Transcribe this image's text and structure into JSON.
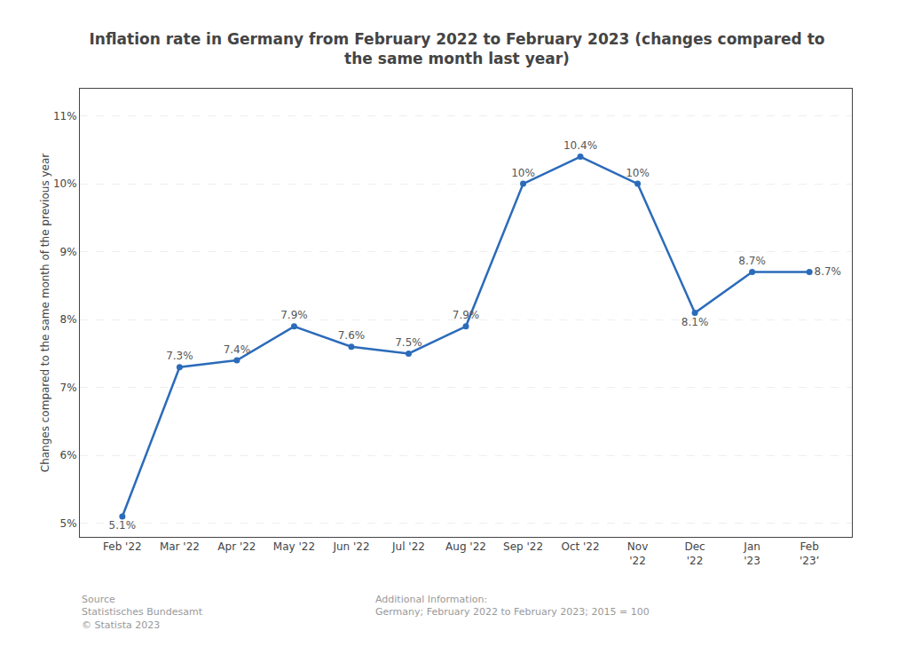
{
  "chart_data": {
    "type": "line",
    "title": "Inflation rate in Germany from February 2022 to February 2023 (changes compared to\nthe same month last year)",
    "y_label": "Changes compared to the same month of the previous year",
    "categories": [
      "Feb '22",
      "Mar '22",
      "Apr '22",
      "May '22",
      "Jun '22",
      "Jul '22",
      "Aug '22",
      "Sep '22",
      "Oct '22",
      "Nov\n'22",
      "Dec\n'22",
      "Jan\n'23",
      "Feb\n'23’"
    ],
    "values": [
      5.1,
      7.3,
      7.4,
      7.9,
      7.6,
      7.5,
      7.9,
      10.0,
      10.4,
      10.0,
      8.1,
      8.7,
      8.7
    ],
    "value_labels": [
      "5.1%",
      "7.3%",
      "7.4%",
      "7.9%",
      "7.6%",
      "7.5%",
      "7.9%",
      "10%",
      "10.4%",
      "10%",
      "8.1%",
      "8.7%",
      "8.7%"
    ],
    "data_labels": true,
    "color": "#2b6bba",
    "marker": "circle",
    "ylim": [
      4.8,
      11.4
    ],
    "yticks": [
      {
        "value": 5,
        "label": "5%"
      },
      {
        "value": 6,
        "label": "6%"
      },
      {
        "value": 7,
        "label": "7%"
      },
      {
        "value": 8,
        "label": "8%"
      },
      {
        "value": 9,
        "label": "9%"
      },
      {
        "value": 10,
        "label": "10%"
      },
      {
        "value": 11,
        "label": "11%"
      }
    ],
    "grid": true,
    "annotations": [
      "Source\nStatistisches Bundesamt\n© Statista 2023",
      "Additional Information:\nGermany; February 2022 to February 2023; 2015 = 100"
    ]
  }
}
